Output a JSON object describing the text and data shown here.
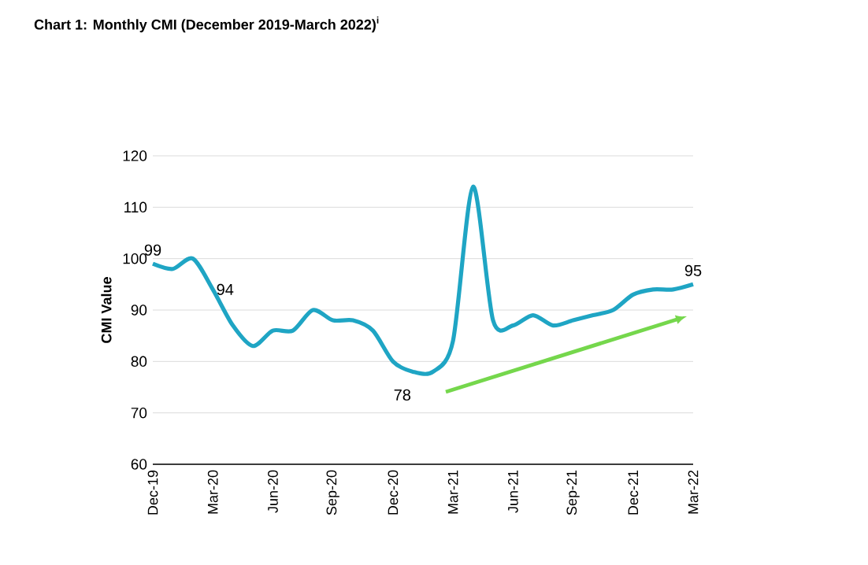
{
  "chart_data": {
    "type": "line",
    "title": "Chart 1: Monthly CMI (December 2019-March 2022)$^{i}$",
    "ylabel": "CMI Value",
    "categories": [
      "Dec-19",
      null,
      null,
      "Mar-20",
      null,
      null,
      "Jun-20",
      null,
      null,
      "Sep-20",
      null,
      null,
      "Dec-20",
      null,
      null,
      "Mar-21",
      null,
      null,
      "Jun-21",
      null,
      null,
      "Sep-21",
      null,
      null,
      "Dec-21",
      null,
      null,
      "Mar-22"
    ],
    "values": [
      99,
      98,
      100,
      94,
      87,
      83,
      86,
      86,
      90,
      88,
      88,
      86,
      80,
      78,
      78,
      84,
      114,
      88,
      87,
      89,
      87,
      88,
      89,
      90,
      93,
      94,
      94,
      95
    ],
    "value_labels": [
      "99",
      null,
      null,
      "94",
      null,
      null,
      null,
      null,
      null,
      null,
      null,
      null,
      null,
      "78",
      null,
      null,
      null,
      null,
      null,
      null,
      null,
      null,
      null,
      null,
      null,
      null,
      null,
      "95"
    ],
    "color": "#1fa5c4",
    "ylim": [
      60,
      120
    ],
    "yticks": [
      60,
      70,
      80,
      90,
      100,
      110,
      120
    ],
    "grid": "y"
  }
}
